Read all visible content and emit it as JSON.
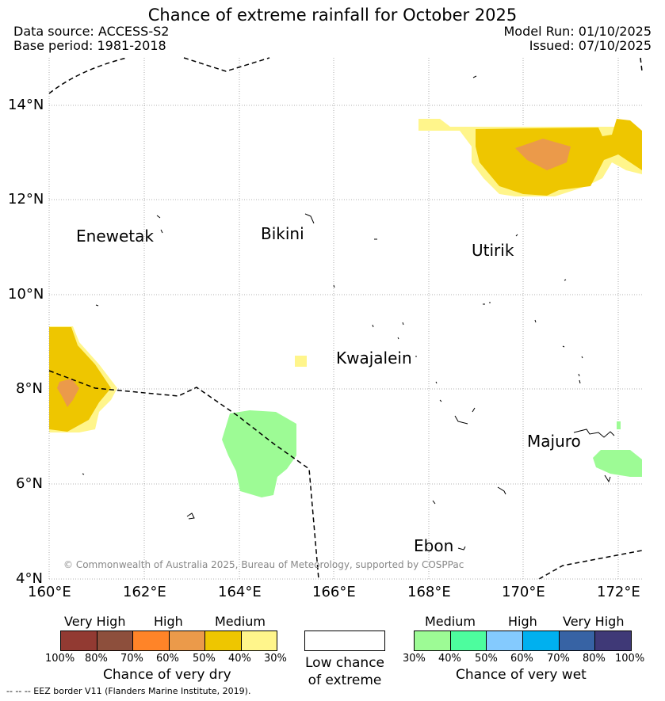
{
  "title": "Chance of extreme rainfall for October 2025",
  "header": {
    "data_source": "Data source: ACCESS-S2",
    "base_period": "Base period: 1981-2018",
    "model_run": "Model Run: 01/10/2025",
    "issued": "Issued: 07/10/2025"
  },
  "map": {
    "lat_ticks": [
      "14°N",
      "12°N",
      "10°N",
      "8°N",
      "6°N",
      "4°N"
    ],
    "lon_ticks": [
      "160°E",
      "162°E",
      "164°E",
      "166°E",
      "168°E",
      "170°E",
      "172°E"
    ],
    "places": {
      "enewetak": "Enewetak",
      "bikini": "Bikini",
      "utirik": "Utirik",
      "kwajalein": "Kwajalein",
      "majuro": "Majuro",
      "ebon": "Ebon"
    },
    "copyright": "© Commonwealth of Australia 2025, Bureau of Meteorology, supported by COSPPac",
    "colors": {
      "dry_40_50": "#eec600",
      "dry_30_40": "#fff58b",
      "dry_50_60": "#eb9a4a",
      "wet_30_40": "#9dfb95",
      "eez": "#000000",
      "grid": "#999999"
    }
  },
  "legend": {
    "dry": {
      "headings": [
        "Very High",
        "High",
        "Medium"
      ],
      "labels": [
        "100%",
        "80%",
        "70%",
        "60%",
        "50%",
        "40%",
        "30%"
      ],
      "colors": [
        "#923a32",
        "#8d4f3c",
        "#ff8428",
        "#eb9a4a",
        "#eec600",
        "#fff58b"
      ],
      "title": "Chance of very dry"
    },
    "low": {
      "line1": "Low chance",
      "line2": "of extreme"
    },
    "wet": {
      "headings": [
        "Medium",
        "High",
        "Very High"
      ],
      "labels": [
        "30%",
        "40%",
        "50%",
        "60%",
        "70%",
        "80%",
        "100%"
      ],
      "colors": [
        "#9dfb95",
        "#4dfd9e",
        "#84cafe",
        "#00b0ef",
        "#3763a4",
        "#3f3977"
      ],
      "title": "Chance of very wet"
    }
  },
  "footnote": "--  --  -- EEZ border V11 (Flanders Marine Institute, 2019)."
}
